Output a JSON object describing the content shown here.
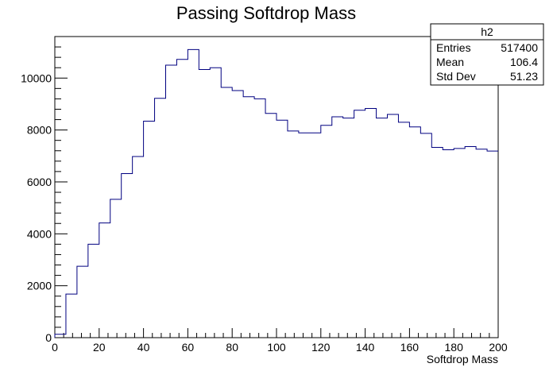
{
  "chart_data": {
    "type": "bar",
    "title": "Passing Softdrop Mass",
    "xlabel": "Softdrop Mass",
    "ylabel": "",
    "xlim": [
      0,
      200
    ],
    "ylim": [
      0,
      11600
    ],
    "bin_width": 5,
    "x_ticks": [
      0,
      20,
      40,
      60,
      80,
      100,
      120,
      140,
      160,
      180,
      200
    ],
    "y_ticks": [
      0,
      2000,
      4000,
      6000,
      8000,
      10000
    ],
    "grid": false,
    "legend": "none",
    "line_color": "#000080",
    "series": [
      {
        "values": [
          130,
          1680,
          2750,
          3600,
          4420,
          5330,
          6320,
          6980,
          8340,
          9220,
          10500,
          10720,
          11100,
          10330,
          10400,
          9640,
          9520,
          9280,
          9200,
          8640,
          8380,
          7960,
          7890,
          7890,
          8180,
          8510,
          8460,
          8760,
          8830,
          8460,
          8600,
          8300,
          8120,
          7870,
          7330,
          7240,
          7290,
          7360,
          7260,
          7190
        ]
      }
    ],
    "stats_box": {
      "title": "h2",
      "placement": "top-right",
      "rows": [
        {
          "label": "Entries",
          "value": "517400"
        },
        {
          "label": "Mean",
          "value": "106.4"
        },
        {
          "label": "Std Dev",
          "value": "51.23"
        }
      ]
    }
  }
}
